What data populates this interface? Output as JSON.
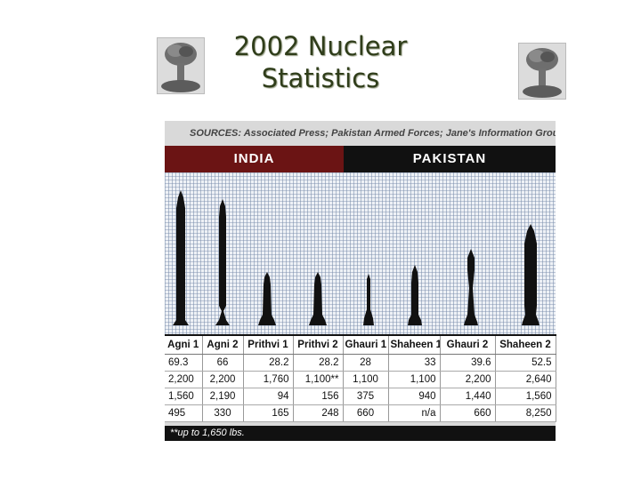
{
  "slide": {
    "title_line1": "2002 Nuclear",
    "title_line2": "Statistics"
  },
  "graphic": {
    "sources": "SOURCES: Associated Press; Pakistan Armed Forces; Jane's Information Group",
    "india_label": "INDIA",
    "pakistan_label": "PAKISTAN",
    "missiles": [
      "Agni 1",
      "Agni 2",
      "Prithvi 1",
      "Prithvi 2",
      "Ghauri 1",
      "Shaheen 1",
      "Ghauri 2",
      "Shaheen 2"
    ],
    "rows": [
      [
        "69.3",
        "66",
        "28.2",
        "28.2",
        "28",
        "33",
        "39.6",
        "52.5"
      ],
      [
        "2,200",
        "2,200",
        "1,760",
        "1,100**",
        "1,100",
        "1,100",
        "2,200",
        "2,640"
      ],
      [
        "1,560",
        "2,190",
        "94",
        "156",
        "375",
        "940",
        "1,440",
        "1,560"
      ],
      [
        "495",
        "330",
        "165",
        "248",
        "660",
        "n/a",
        "660",
        "8,250"
      ]
    ],
    "footnote": "**up to 1,650 lbs."
  }
}
